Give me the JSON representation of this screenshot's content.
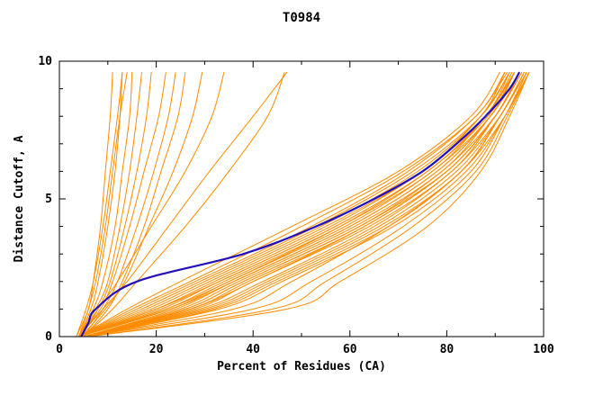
{
  "chart_data": {
    "type": "line",
    "title": "T0984",
    "xlabel": "Percent of Residues (CA)",
    "ylabel": "Distance Cutoff, A",
    "xlim": [
      0,
      100
    ],
    "ylim": [
      0,
      10
    ],
    "x_major_ticks": [
      0,
      20,
      40,
      60,
      80,
      100
    ],
    "x_minor_ticks": [
      10,
      30,
      50,
      70,
      90
    ],
    "y_major_ticks": [
      0,
      5,
      10
    ],
    "y_minor_ticks": [
      1,
      2,
      3,
      4,
      6,
      7,
      8,
      9
    ],
    "grid": false,
    "legend": "none",
    "colors": {
      "models": "#ff8c00",
      "highlight": "#2211bb",
      "axis": "#000000",
      "background": "#ffffff"
    },
    "series_note": "orange = individual model curves, blue = highlighted model",
    "series": [
      {
        "color": "orange",
        "y": [
          0,
          1,
          2,
          4,
          6,
          8,
          9.6
        ],
        "x": [
          3.5,
          6,
          7,
          8.5,
          9.5,
          10.5,
          11
        ]
      },
      {
        "color": "orange",
        "y": [
          0,
          1,
          2,
          4,
          6,
          8,
          9.6
        ],
        "x": [
          4,
          6.5,
          8,
          10,
          11.5,
          12.5,
          13
        ]
      },
      {
        "color": "orange",
        "y": [
          0,
          1,
          2,
          4,
          6,
          8,
          9.6
        ],
        "x": [
          4,
          7,
          9,
          11.5,
          13,
          14.5,
          15
        ]
      },
      {
        "color": "orange",
        "y": [
          0,
          1,
          2,
          4,
          6,
          8,
          9.6
        ],
        "x": [
          4,
          7.5,
          10,
          12.5,
          14.5,
          16,
          17
        ]
      },
      {
        "color": "orange",
        "y": [
          0,
          1,
          2,
          4,
          6,
          8,
          9.6
        ],
        "x": [
          4.5,
          8,
          10.5,
          13.5,
          16,
          18,
          19
        ]
      },
      {
        "color": "orange",
        "y": [
          0,
          1,
          2,
          4,
          6,
          8,
          9.6
        ],
        "x": [
          4,
          8.5,
          11,
          14.5,
          17.5,
          20.5,
          22
        ]
      },
      {
        "color": "orange",
        "y": [
          0,
          1,
          2,
          4,
          6,
          8,
          9.6
        ],
        "x": [
          5,
          9,
          12,
          16,
          19.5,
          22.5,
          24
        ]
      },
      {
        "color": "orange",
        "y": [
          0,
          1,
          2,
          4,
          6,
          8,
          9.6
        ],
        "x": [
          4,
          6,
          7.5,
          9.5,
          11,
          12.5,
          14
        ]
      },
      {
        "color": "orange",
        "y": [
          0,
          1,
          2,
          4,
          6,
          8,
          9.6
        ],
        "x": [
          3.5,
          5.5,
          7,
          9,
          10.5,
          12,
          13
        ]
      },
      {
        "color": "orange",
        "y": [
          0,
          1,
          2,
          4,
          6,
          8,
          9.6
        ],
        "x": [
          5,
          10,
          13,
          17.5,
          21,
          24.5,
          26
        ]
      },
      {
        "color": "orange",
        "y": [
          0,
          1,
          2,
          4,
          6,
          8,
          9.6
        ],
        "x": [
          4.5,
          9.5,
          13.5,
          18.5,
          23.5,
          27.5,
          29.5
        ]
      },
      {
        "color": "orange",
        "y": [
          0,
          1,
          2,
          4,
          6,
          8,
          9.6
        ],
        "x": [
          4,
          9,
          14,
          22.5,
          31,
          40,
          47
        ]
      },
      {
        "color": "orange",
        "y": [
          0,
          1,
          2,
          4,
          6,
          8,
          9.6
        ],
        "x": [
          4,
          8,
          12,
          19,
          26,
          31.5,
          34
        ]
      },
      {
        "color": "orange",
        "y": [
          0,
          1,
          2,
          4,
          6,
          8,
          9.6
        ],
        "x": [
          5,
          11,
          16,
          26,
          35,
          43,
          46.5
        ]
      },
      {
        "color": "orange",
        "y": [
          0,
          1,
          2,
          4,
          6,
          8,
          9.6
        ],
        "x": [
          4,
          20,
          33,
          57,
          76,
          88,
          93
        ]
      },
      {
        "color": "orange",
        "y": [
          0,
          1,
          2,
          4,
          6,
          8,
          9.6
        ],
        "x": [
          4,
          23,
          36,
          60,
          78,
          89,
          94
        ]
      },
      {
        "color": "orange",
        "y": [
          0,
          1,
          2,
          4,
          6,
          8,
          9.6
        ],
        "x": [
          5,
          26,
          38,
          62,
          80,
          90,
          95
        ]
      },
      {
        "color": "orange",
        "y": [
          0,
          1,
          2,
          4,
          6,
          8,
          9.6
        ],
        "x": [
          4,
          18,
          30,
          54,
          74,
          87,
          92
        ]
      },
      {
        "color": "orange",
        "y": [
          0,
          1,
          2,
          4,
          6,
          8,
          9.6
        ],
        "x": [
          5,
          28,
          40,
          64,
          81,
          90,
          95.5
        ]
      },
      {
        "color": "orange",
        "y": [
          0,
          1,
          2,
          4,
          6,
          8,
          9.6
        ],
        "x": [
          4,
          15,
          27,
          50,
          71,
          86,
          92
        ]
      },
      {
        "color": "orange",
        "y": [
          0,
          1,
          2,
          4,
          6,
          8,
          9.6
        ],
        "x": [
          5,
          30,
          43,
          66,
          82,
          91,
          96
        ]
      },
      {
        "color": "orange",
        "y": [
          0,
          1,
          2,
          4,
          6,
          8,
          9.6
        ],
        "x": [
          4,
          22,
          34,
          58,
          77,
          88,
          94
        ]
      },
      {
        "color": "orange",
        "y": [
          0,
          1,
          2,
          4,
          6,
          8,
          9.6
        ],
        "x": [
          5,
          25,
          37,
          61,
          79,
          89,
          95
        ]
      },
      {
        "color": "orange",
        "y": [
          0,
          1,
          2,
          4,
          6,
          8,
          9.6
        ],
        "x": [
          4,
          19,
          31,
          55,
          75,
          87,
          93
        ]
      },
      {
        "color": "orange",
        "y": [
          0,
          1,
          2,
          4,
          6,
          8,
          9.6
        ],
        "x": [
          5,
          27,
          39,
          63,
          80,
          90,
          95
        ]
      },
      {
        "color": "orange",
        "y": [
          0,
          1,
          2,
          4,
          6,
          8,
          9.6
        ],
        "x": [
          4,
          16,
          28,
          52,
          72,
          86,
          92.5
        ]
      },
      {
        "color": "orange",
        "y": [
          0,
          1,
          2,
          4,
          6,
          8,
          9.6
        ],
        "x": [
          5,
          29,
          42,
          65,
          81,
          91,
          96
        ]
      },
      {
        "color": "orange",
        "y": [
          0,
          1,
          2,
          4,
          6,
          8,
          9.6
        ],
        "x": [
          4,
          21,
          33,
          57,
          76,
          88,
          94
        ]
      },
      {
        "color": "orange",
        "y": [
          0,
          1,
          2,
          4,
          6,
          8,
          9.6
        ],
        "x": [
          5,
          24,
          36,
          60,
          78,
          89,
          95
        ]
      },
      {
        "color": "orange",
        "y": [
          0,
          1,
          2,
          4,
          6,
          8,
          9.6
        ],
        "x": [
          4,
          17,
          29,
          53,
          73,
          87,
          93
        ]
      },
      {
        "color": "orange",
        "y": [
          0,
          1,
          2,
          4,
          6,
          8,
          9.6
        ],
        "x": [
          5,
          31,
          44,
          67,
          83,
          91,
          96.5
        ]
      },
      {
        "color": "orange",
        "y": [
          0,
          1,
          2,
          4,
          6,
          8,
          9.6
        ],
        "x": [
          4,
          23,
          35,
          59,
          77,
          89,
          94
        ]
      },
      {
        "color": "orange",
        "y": [
          0,
          1,
          2,
          4,
          6,
          8,
          9.6
        ],
        "x": [
          5,
          26,
          38,
          62,
          79,
          90,
          95
        ]
      },
      {
        "color": "orange",
        "y": [
          0,
          1,
          2,
          4,
          6,
          8,
          9.6
        ],
        "x": [
          4,
          20,
          32,
          56,
          75,
          88,
          93.5
        ]
      },
      {
        "color": "orange",
        "y": [
          0,
          1,
          2,
          4,
          6,
          8,
          9.6
        ],
        "x": [
          6,
          32,
          45,
          68,
          83,
          92,
          96.5
        ]
      },
      {
        "color": "orange",
        "y": [
          0,
          1,
          2,
          4,
          6,
          8,
          9.6
        ],
        "x": [
          4,
          14,
          25,
          48,
          70,
          85,
          91
        ]
      },
      {
        "color": "orange",
        "y": [
          0,
          1,
          2,
          4,
          6,
          8,
          9.6
        ],
        "x": [
          5,
          33,
          46,
          69,
          84,
          92,
          97
        ]
      },
      {
        "color": "orange",
        "y": [
          0,
          1,
          2,
          4,
          6,
          8,
          9.6
        ],
        "x": [
          4,
          22,
          35,
          58,
          76,
          88.5,
          94
        ]
      },
      {
        "color": "orange",
        "y": [
          0,
          1,
          2,
          4,
          6,
          8,
          9.6
        ],
        "x": [
          5,
          27,
          40,
          63,
          80,
          90,
          95.5
        ]
      },
      {
        "color": "orange",
        "y": [
          0,
          1,
          2,
          4,
          6,
          8,
          9.6
        ],
        "x": [
          5,
          36,
          48,
          68,
          83,
          91,
          96
        ]
      },
      {
        "color": "orange",
        "y": [
          0,
          1,
          2,
          4,
          6,
          8,
          9.6
        ],
        "x": [
          5,
          40,
          52,
          71,
          85,
          92,
          96.5
        ]
      },
      {
        "color": "orange",
        "y": [
          0,
          1,
          2,
          4,
          6,
          8,
          9.6
        ],
        "x": [
          6,
          44,
          55,
          73,
          86,
          92.5,
          97
        ]
      },
      {
        "color": "orange",
        "y": [
          0,
          1,
          2,
          4,
          6,
          8,
          9.6
        ],
        "x": [
          6,
          47,
          58,
          76,
          87,
          93,
          97
        ]
      },
      {
        "color": "highlight",
        "y": [
          0,
          0.5,
          1,
          2,
          3,
          4,
          5,
          6,
          7,
          8,
          9,
          9.6
        ],
        "x": [
          4.5,
          6,
          7.5,
          16,
          38,
          53,
          65,
          75,
          82,
          88,
          93,
          95
        ]
      }
    ]
  }
}
